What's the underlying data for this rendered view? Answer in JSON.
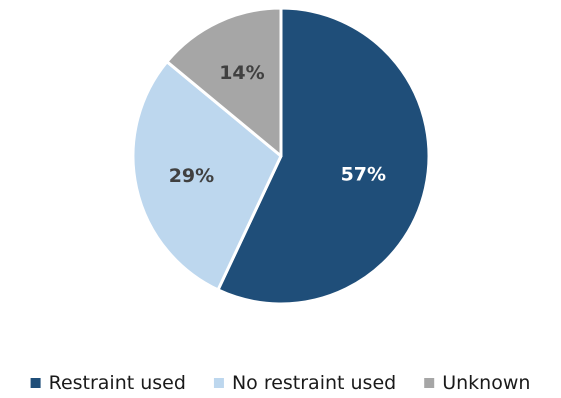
{
  "chart_data": {
    "type": "pie",
    "slices": [
      {
        "name": "Restraint used",
        "value": 57,
        "label": "57%",
        "color": "#1f4e79",
        "label_color": "#ffffff"
      },
      {
        "name": "No restraint used",
        "value": 29,
        "label": "29%",
        "color": "#bdd7ee",
        "label_color": "#404040"
      },
      {
        "name": "Unknown",
        "value": 14,
        "label": "14%",
        "color": "#a6a6a6",
        "label_color": "#404040"
      }
    ],
    "start_angle_deg": 0,
    "direction": "clockwise",
    "legend_position": "bottom"
  }
}
